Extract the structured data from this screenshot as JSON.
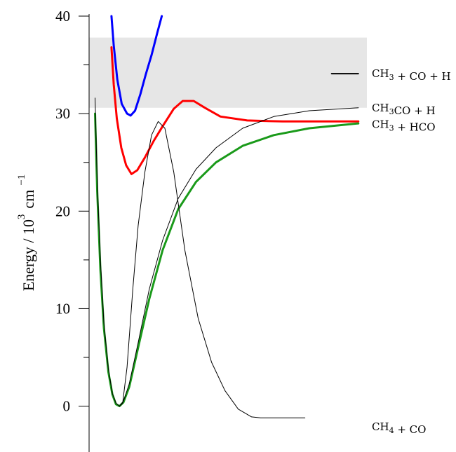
{
  "chart_data": {
    "type": "line",
    "title": "",
    "xlabel": "",
    "ylabel": {
      "prefix": "Energy / 10",
      "sup1": "3",
      "unit": "cm",
      "sup2": "−1"
    },
    "ylim": [
      -4.7,
      40
    ],
    "yticks": [
      {
        "value": 0,
        "label": "0"
      },
      {
        "value": 10,
        "label": "10"
      },
      {
        "value": 20,
        "label": "20"
      },
      {
        "value": 30,
        "label": "30"
      },
      {
        "value": 40,
        "label": "40"
      }
    ],
    "xlim": [
      0,
      1
    ],
    "shaded_band": {
      "from": 30.6,
      "to": 37.8,
      "color": "#e6e6e6"
    },
    "series": [
      {
        "key": "blue",
        "color": "#0000ff",
        "stroke_width": 3,
        "points": [
          [
            0.115,
            40.0
          ],
          [
            0.12,
            37.0
          ],
          [
            0.128,
            33.5
          ],
          [
            0.138,
            31.0
          ],
          [
            0.15,
            30.0
          ],
          [
            0.158,
            29.8
          ],
          [
            0.168,
            30.3
          ],
          [
            0.18,
            32.0
          ],
          [
            0.192,
            34.0
          ],
          [
            0.205,
            36.0
          ],
          [
            0.218,
            38.3
          ],
          [
            0.228,
            40.0
          ]
        ]
      },
      {
        "key": "red",
        "color": "#ff0000",
        "stroke_width": 3,
        "points": [
          [
            0.115,
            36.8
          ],
          [
            0.12,
            33.0
          ],
          [
            0.127,
            29.5
          ],
          [
            0.137,
            26.5
          ],
          [
            0.148,
            24.7
          ],
          [
            0.16,
            23.8
          ],
          [
            0.173,
            24.2
          ],
          [
            0.19,
            25.5
          ],
          [
            0.21,
            27.2
          ],
          [
            0.23,
            28.7
          ],
          [
            0.255,
            30.5
          ],
          [
            0.275,
            31.3
          ],
          [
            0.3,
            31.3
          ],
          [
            0.325,
            30.6
          ],
          [
            0.36,
            29.7
          ],
          [
            0.42,
            29.3
          ],
          [
            0.5,
            29.2
          ],
          [
            0.6,
            29.2
          ],
          [
            0.67,
            29.2
          ]
        ]
      },
      {
        "key": "green",
        "color": "#1a9a1a",
        "stroke_width": 3,
        "points": [
          [
            0.078,
            30.0
          ],
          [
            0.083,
            22.0
          ],
          [
            0.09,
            14.0
          ],
          [
            0.098,
            8.0
          ],
          [
            0.108,
            3.5
          ],
          [
            0.117,
            1.2
          ],
          [
            0.125,
            0.2
          ],
          [
            0.133,
            0.0
          ],
          [
            0.142,
            0.4
          ],
          [
            0.155,
            2.0
          ],
          [
            0.175,
            6.0
          ],
          [
            0.2,
            11.0
          ],
          [
            0.23,
            16.0
          ],
          [
            0.265,
            20.2
          ],
          [
            0.305,
            23.0
          ],
          [
            0.35,
            25.0
          ],
          [
            0.41,
            26.7
          ],
          [
            0.48,
            27.8
          ],
          [
            0.56,
            28.5
          ],
          [
            0.67,
            29.0
          ]
        ]
      },
      {
        "key": "black-thin-1",
        "color": "#000000",
        "stroke_width": 1,
        "points": [
          [
            0.078,
            31.6
          ],
          [
            0.083,
            23.0
          ],
          [
            0.09,
            15.0
          ],
          [
            0.098,
            8.5
          ],
          [
            0.108,
            3.8
          ],
          [
            0.117,
            1.3
          ],
          [
            0.125,
            0.3
          ],
          [
            0.133,
            0.0
          ],
          [
            0.14,
            0.3
          ],
          [
            0.15,
            4.0
          ],
          [
            0.163,
            12.0
          ],
          [
            0.175,
            18.5
          ],
          [
            0.19,
            24.0
          ],
          [
            0.205,
            27.8
          ],
          [
            0.22,
            29.2
          ],
          [
            0.235,
            28.5
          ],
          [
            0.255,
            24.0
          ],
          [
            0.28,
            16.0
          ],
          [
            0.31,
            9.0
          ],
          [
            0.34,
            4.5
          ],
          [
            0.37,
            1.6
          ],
          [
            0.4,
            -0.3
          ],
          [
            0.43,
            -1.1
          ],
          [
            0.45,
            -1.2
          ],
          [
            0.55,
            -1.2
          ]
        ]
      },
      {
        "key": "black-thin-2",
        "color": "#000000",
        "stroke_width": 1,
        "points": [
          [
            0.133,
            0.0
          ],
          [
            0.142,
            0.5
          ],
          [
            0.155,
            2.3
          ],
          [
            0.175,
            6.5
          ],
          [
            0.2,
            12.0
          ],
          [
            0.23,
            17.0
          ],
          [
            0.265,
            21.3
          ],
          [
            0.305,
            24.3
          ],
          [
            0.35,
            26.5
          ],
          [
            0.41,
            28.5
          ],
          [
            0.48,
            29.7
          ],
          [
            0.56,
            30.3
          ],
          [
            0.67,
            30.6
          ]
        ]
      },
      {
        "key": "ch3-co-h-level",
        "color": "#000000",
        "stroke_width": 2,
        "points": [
          [
            0.61,
            34.1
          ],
          [
            0.67,
            34.1
          ]
        ]
      }
    ],
    "annotations": [
      {
        "key": "ch3coh",
        "parts": [
          {
            "t": "CH"
          },
          {
            "t": "3",
            "sub": true
          },
          {
            "t": " + CO + H"
          }
        ],
        "y": 34.1
      },
      {
        "key": "ch3co",
        "parts": [
          {
            "t": "CH"
          },
          {
            "t": "3",
            "sub": true
          },
          {
            "t": "CO + H"
          }
        ],
        "y": 30.6
      },
      {
        "key": "ch3hco",
        "parts": [
          {
            "t": "CH"
          },
          {
            "t": "3",
            "sub": true
          },
          {
            "t": " + HCO"
          }
        ],
        "y": 28.9
      },
      {
        "key": "ch4co",
        "parts": [
          {
            "t": "CH"
          },
          {
            "t": "4",
            "sub": true
          },
          {
            "t": " + CO"
          }
        ],
        "y": -2.1
      }
    ]
  }
}
